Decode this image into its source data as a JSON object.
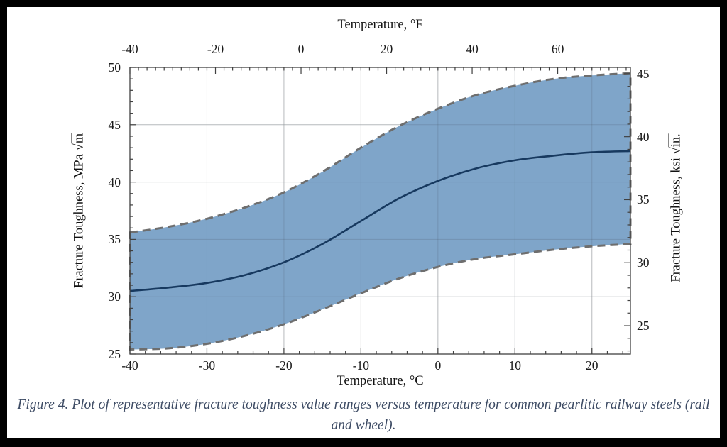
{
  "caption": "Figure 4.  Plot of representative fracture toughness value ranges versus temperature for common pearlitic railway steels (rail and wheel).",
  "chart_data": {
    "type": "area",
    "title": "",
    "x_unit": "°C",
    "x": [
      -40,
      -35,
      -30,
      -25,
      -20,
      -15,
      -10,
      -5,
      0,
      5,
      10,
      15,
      20,
      25
    ],
    "series": [
      {
        "name": "upper_bound_MPa_sqrt_m",
        "values": [
          35.6,
          36.1,
          36.8,
          37.8,
          39.1,
          40.9,
          43.0,
          44.9,
          46.4,
          47.6,
          48.4,
          49.0,
          49.3,
          49.5
        ]
      },
      {
        "name": "mean_MPa_sqrt_m",
        "values": [
          30.5,
          30.8,
          31.2,
          31.9,
          33.0,
          34.6,
          36.6,
          38.6,
          40.1,
          41.2,
          41.9,
          42.3,
          42.6,
          42.7
        ]
      },
      {
        "name": "lower_bound_MPa_sqrt_m",
        "values": [
          25.4,
          25.5,
          25.9,
          26.6,
          27.6,
          28.9,
          30.3,
          31.6,
          32.6,
          33.3,
          33.7,
          34.1,
          34.4,
          34.6
        ]
      }
    ],
    "top_axis": {
      "label": "Temperature, °F",
      "ticks": [
        -40,
        -20,
        0,
        20,
        40,
        60
      ]
    },
    "bottom_axis": {
      "label": "Temperature, °C",
      "ticks": [
        -40,
        -30,
        -20,
        -10,
        0,
        10,
        20
      ],
      "range": [
        -40,
        25
      ]
    },
    "left_axis": {
      "label_prefix": "Fracture Toughness, MPa ",
      "sqrt_symbol": "√",
      "radicand": "m",
      "ticks": [
        25,
        30,
        35,
        40,
        45,
        50
      ],
      "range": [
        25,
        50
      ]
    },
    "right_axis": {
      "label_prefix": "Fracture Toughness, ksi ",
      "sqrt_symbol": "√",
      "radicand": "in.",
      "ticks": [
        25,
        30,
        35,
        40,
        45
      ],
      "mpa_per_ksi": 1.0989
    },
    "grid": {
      "vertical_C": [
        -30,
        -20,
        -10,
        0,
        10,
        20
      ],
      "horizontal_MPa": [
        30,
        35,
        40,
        45
      ]
    },
    "legend": null,
    "colors": {
      "band_fill": "#7fa5c9",
      "band_edge": "#6e6e6e",
      "mean_line": "#17395f",
      "gridline": "#d9d9d9",
      "frame": "#404040",
      "tick_label": "#1b1b1b",
      "caption": "#3d4b64",
      "page_border": "#000000"
    }
  }
}
